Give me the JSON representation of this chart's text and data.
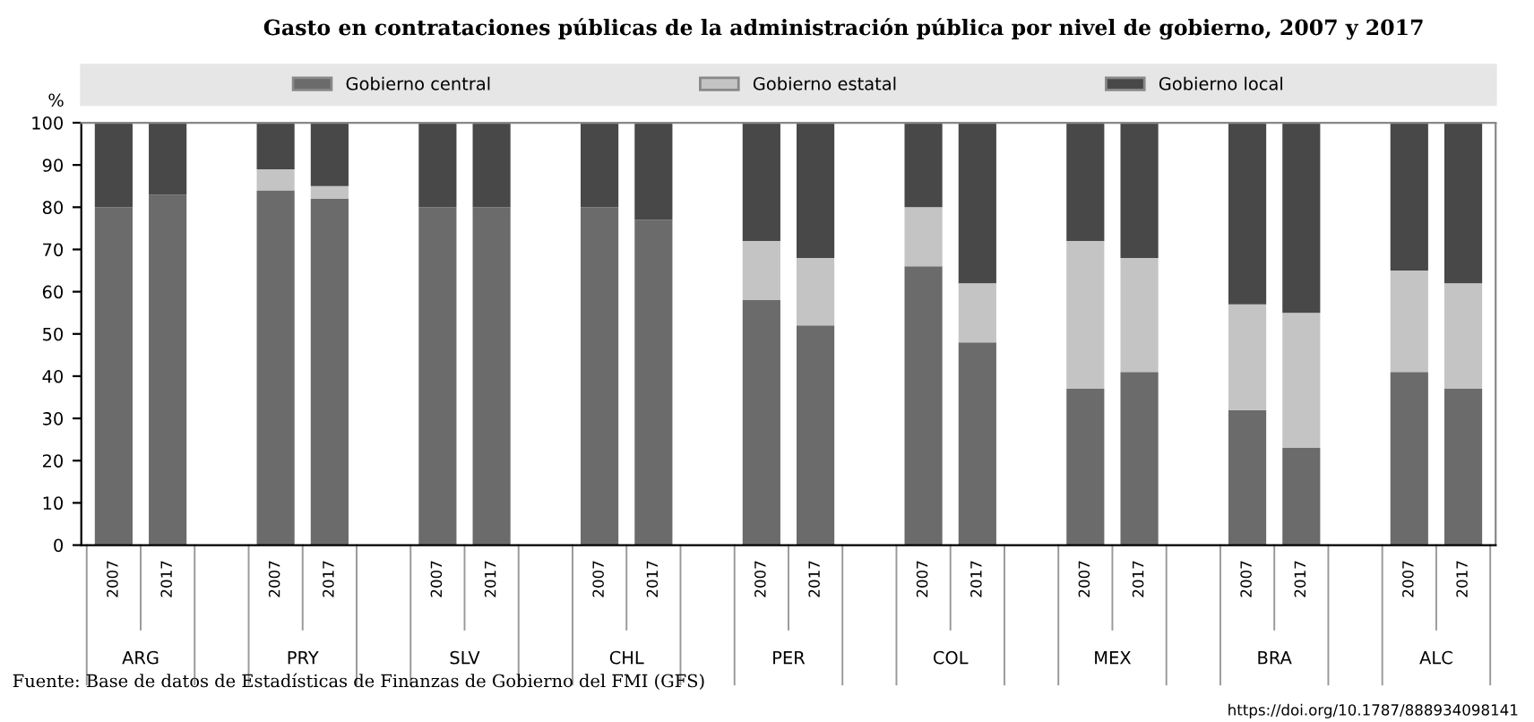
{
  "chart_data": {
    "type": "bar",
    "stacked": true,
    "title": "Gasto en contrataciones públicas de la administración pública por nivel de gobierno, 2007 y 2017",
    "ylabel": "%",
    "categories": [
      "2007",
      "2017",
      null,
      "2007",
      "2017",
      null,
      "2007",
      "2017",
      null,
      "2007",
      "2017",
      null,
      "2007",
      "2017",
      null,
      "2007",
      "2017",
      null,
      "2007",
      "2017",
      null,
      "2007",
      "2017",
      null,
      "2007",
      "2017"
    ],
    "series": [
      {
        "name": "Gobierno central",
        "color": "#6b6b6b",
        "values": [
          80,
          83,
          null,
          84,
          82,
          null,
          80,
          80,
          null,
          80,
          77,
          null,
          58,
          52,
          null,
          66,
          48,
          null,
          37,
          41,
          null,
          32,
          23,
          null,
          41,
          37
        ]
      },
      {
        "name": "Gobierno estatal",
        "color": "#c4c4c4",
        "values": [
          0,
          0,
          null,
          5,
          3,
          null,
          0,
          0,
          null,
          0,
          0,
          null,
          14,
          16,
          null,
          14,
          14,
          null,
          35,
          27,
          null,
          25,
          32,
          null,
          24,
          25
        ]
      },
      {
        "name": "Gobierno local",
        "color": "#484848",
        "values": [
          20,
          17,
          null,
          11,
          15,
          null,
          20,
          20,
          null,
          20,
          23,
          null,
          28,
          32,
          null,
          20,
          38,
          null,
          28,
          32,
          null,
          43,
          45,
          null,
          35,
          38
        ]
      }
    ],
    "ylim": [
      0,
      100
    ],
    "yticks": [
      0,
      10,
      20,
      30,
      40,
      50,
      60,
      70,
      80,
      90,
      100
    ],
    "legend": "top",
    "grid": false,
    "annotations": [
      "ARG",
      "PRY",
      "SLV",
      "CHL",
      "PER",
      "COL",
      "MEX",
      "BRA",
      "ALC",
      "Fuente: Base de datos de Estadísticas de Finanzas de Gobierno del FMI (GFS)",
      "https://doi.org/10.1787/888934098141"
    ]
  }
}
